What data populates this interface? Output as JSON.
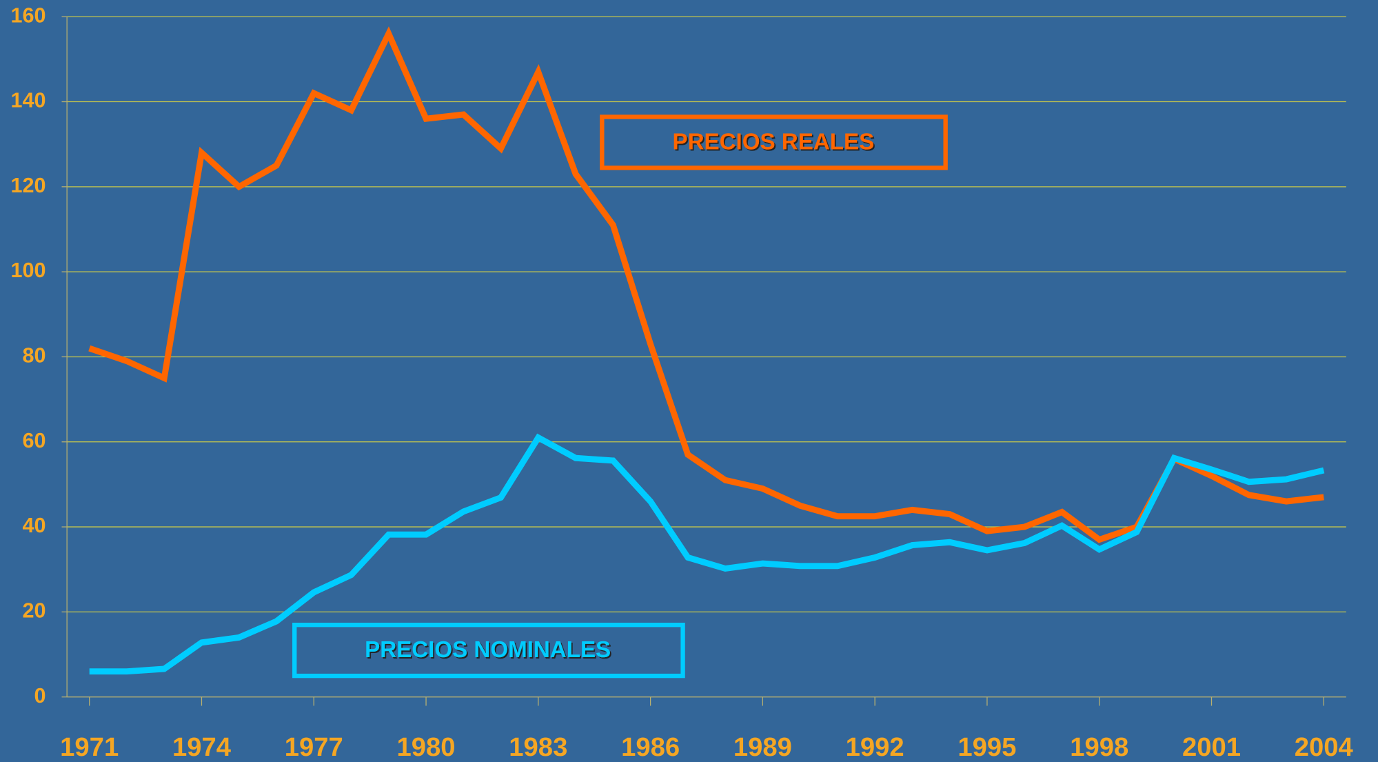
{
  "chart_data": {
    "type": "line",
    "x": [
      1971,
      1972,
      1973,
      1974,
      1975,
      1976,
      1977,
      1978,
      1979,
      1980,
      1981,
      1982,
      1983,
      1984,
      1985,
      1986,
      1987,
      1988,
      1989,
      1990,
      1991,
      1992,
      1993,
      1994,
      1995,
      1996,
      1997,
      1998,
      1999,
      2000,
      2001,
      2002,
      2003,
      2004
    ],
    "series": [
      {
        "name": "PRECIOS REALES",
        "color": "#ff6600",
        "values": [
          82,
          79,
          75,
          128,
          120,
          125,
          142,
          138,
          156,
          136,
          137,
          129,
          147,
          123,
          111,
          83,
          57,
          51,
          49,
          45,
          42.5,
          42.5,
          44,
          43,
          39,
          40,
          43.5,
          37,
          40,
          56,
          52,
          47.5,
          46,
          47
        ]
      },
      {
        "name": "PRECIOS NOMINALES",
        "color": "#00ccff",
        "values": [
          6,
          6,
          6.6,
          12.8,
          14,
          17.8,
          24.6,
          28.7,
          38.2,
          38.2,
          43.6,
          46.9,
          61,
          56.2,
          55.6,
          46,
          32.8,
          30.2,
          31.4,
          30.8,
          30.8,
          32.8,
          35.7,
          36.4,
          34.5,
          36.2,
          40.3,
          34.7,
          38.8,
          56.2,
          53.5,
          50.6,
          51.2,
          53.3
        ]
      }
    ],
    "xlim": [
      1970.4,
      2004.6
    ],
    "xticks": [
      1971,
      1974,
      1977,
      1980,
      1983,
      1986,
      1989,
      1992,
      1995,
      1998,
      2001,
      2004
    ],
    "ylim": [
      0,
      160
    ],
    "yticks": [
      0,
      20,
      40,
      60,
      80,
      100,
      120,
      140,
      160
    ],
    "grid": true
  }
}
